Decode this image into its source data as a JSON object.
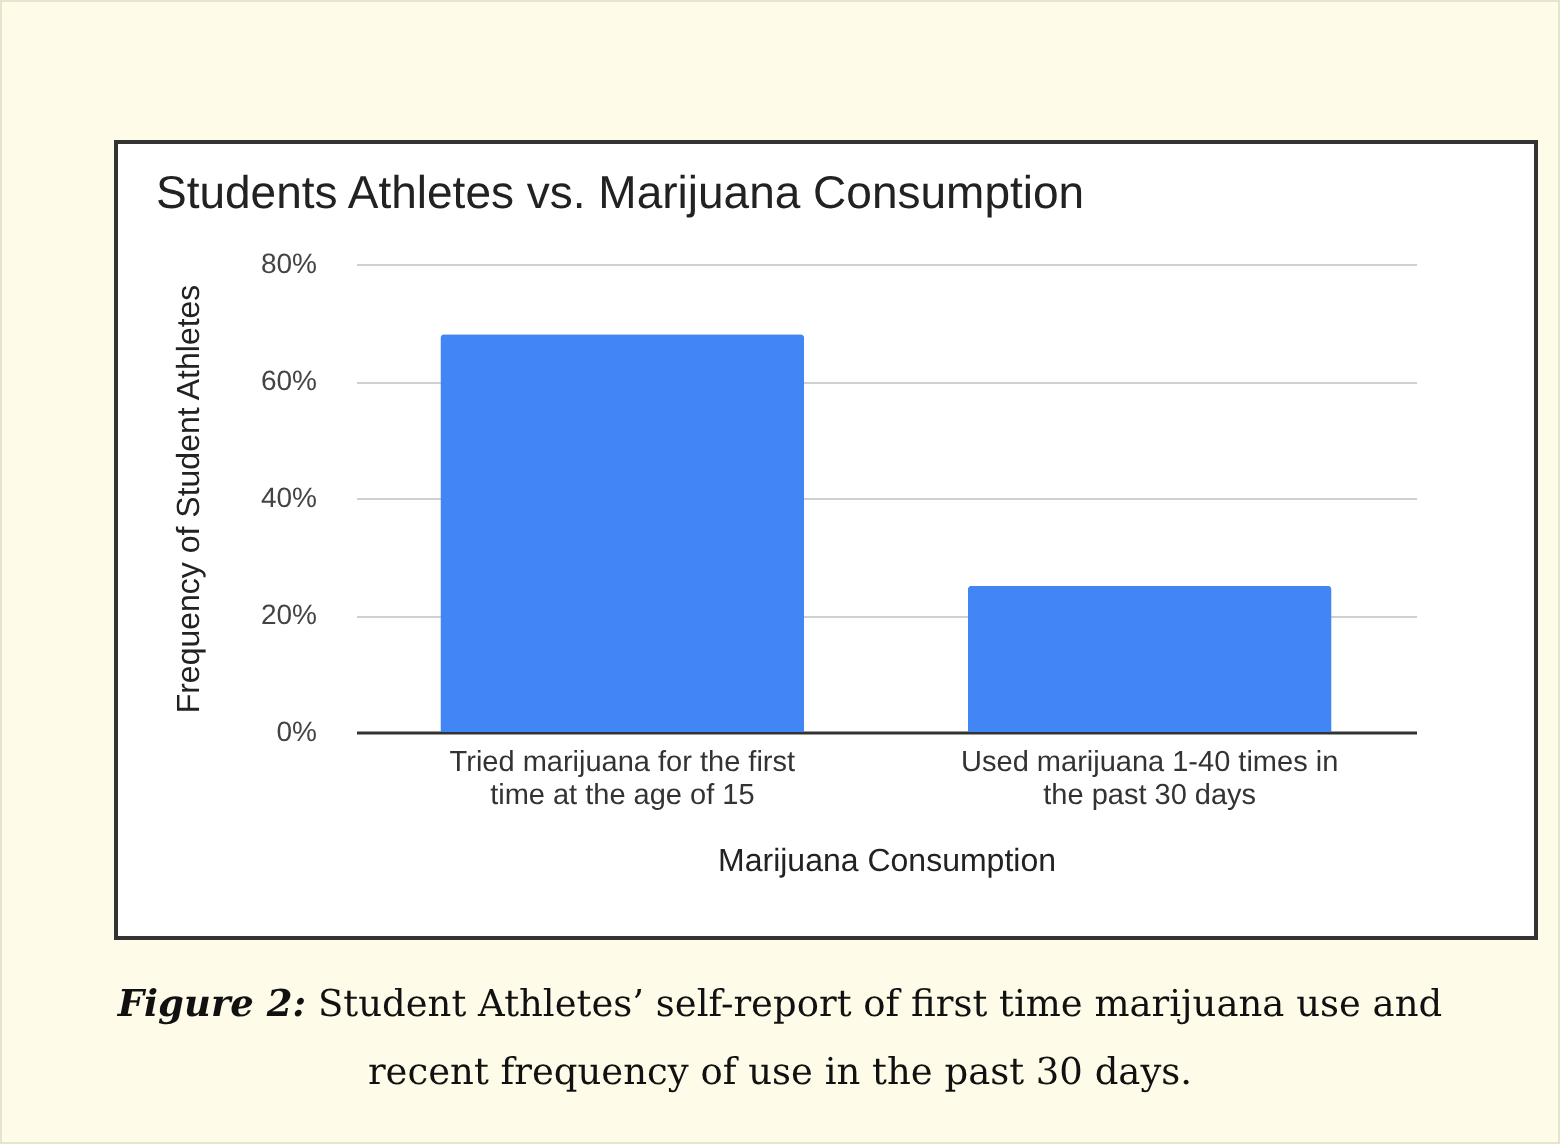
{
  "chart_data": {
    "type": "bar",
    "title": "Students Athletes vs. Marijuana Consumption",
    "xlabel": "Marijuana Consumption",
    "ylabel": "Frequency of Student Athletes",
    "categories": [
      "Tried marijuana for the first time at the age of 15",
      "Used marijuana 1-40 times in the past 30 days"
    ],
    "values": [
      68,
      25
    ],
    "color": "#4285f4",
    "ylim": [
      0,
      80
    ],
    "yticks": [
      {
        "value": 0,
        "label": "0%"
      },
      {
        "value": 20,
        "label": "20%"
      },
      {
        "value": 40,
        "label": "40%"
      },
      {
        "value": 60,
        "label": "60%"
      },
      {
        "value": 80,
        "label": "80%"
      }
    ],
    "grid": "y",
    "annotations": [
      "Figure 2: Student Athletes’ self-report of first time marijuana use and recent frequency of use in the past 30 days."
    ]
  }
}
